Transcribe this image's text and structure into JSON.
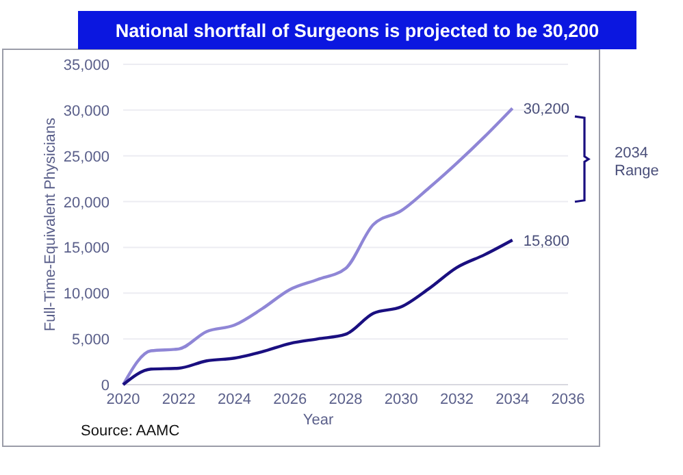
{
  "chart_data": {
    "type": "line",
    "title": "National shortfall of Surgeons is projected to be 30,200",
    "xlabel": "Year",
    "ylabel": "Full-Time-Equivalent Physicians",
    "x": [
      2020,
      2021,
      2022,
      2023,
      2024,
      2025,
      2026,
      2027,
      2028,
      2029,
      2030,
      2031,
      2032,
      2033,
      2034
    ],
    "series": [
      {
        "color": "#8f86d6",
        "values": [
          0,
          3700,
          3900,
          5800,
          6500,
          8300,
          10400,
          11500,
          12700,
          17500,
          19000,
          21500,
          24200,
          27100,
          30200
        ]
      },
      {
        "color": "#1a0f80",
        "values": [
          0,
          1700,
          1800,
          2600,
          2900,
          3600,
          4500,
          5000,
          5500,
          7800,
          8500,
          10500,
          12800,
          14200,
          15800
        ]
      }
    ],
    "xlim": [
      2020,
      2036
    ],
    "xticks": [
      2020,
      2022,
      2024,
      2026,
      2028,
      2030,
      2032,
      2034,
      2036
    ],
    "ylim": [
      0,
      35000
    ],
    "yticks": [
      {
        "value": 0,
        "label": "0"
      },
      {
        "value": 5000,
        "label": "5,000"
      },
      {
        "value": 10000,
        "label": "10,000"
      },
      {
        "value": 15000,
        "label": "15,000"
      },
      {
        "value": 20000,
        "label": "20,000"
      },
      {
        "value": 25000,
        "label": "25,000"
      },
      {
        "value": 30000,
        "label": "30,000"
      },
      {
        "value": 35000,
        "label": "35,000"
      }
    ],
    "grid": "y",
    "marker": "none",
    "line_style": "solid",
    "annotations": [
      {
        "text": "30,200",
        "x": 2034,
        "y": 30200
      },
      {
        "text": "15,800",
        "x": 2034,
        "y": 15800
      },
      "2034 Range",
      "Source: AAMC"
    ]
  }
}
